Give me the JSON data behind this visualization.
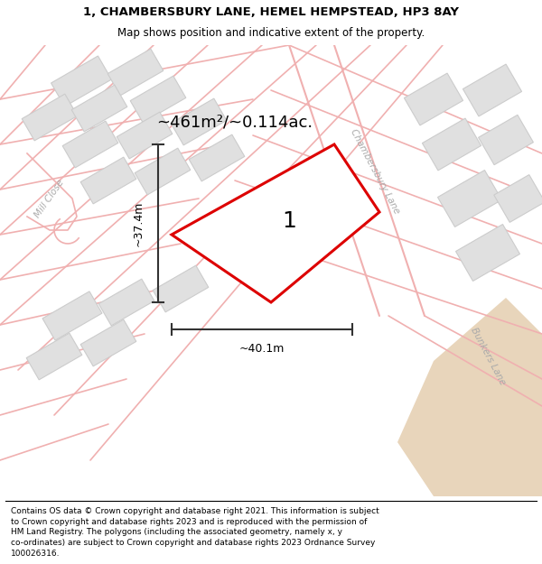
{
  "title_line1": "1, CHAMBERSBURY LANE, HEMEL HEMPSTEAD, HP3 8AY",
  "title_line2": "Map shows position and indicative extent of the property.",
  "area_text": "~461m²/~0.114ac.",
  "width_text": "~40.1m",
  "height_text": "~37.4m",
  "plot_number": "1",
  "footer_lines": [
    "Contains OS data © Crown copyright and database right 2021. This information is subject",
    "to Crown copyright and database rights 2023 and is reproduced with the permission of",
    "HM Land Registry. The polygons (including the associated geometry, namely x, y",
    "co-ordinates) are subject to Crown copyright and database rights 2023 Ordnance Survey",
    "100026316."
  ],
  "map_bg_color": "#ffffff",
  "plot_fill_color": "#ffffff",
  "plot_edge_color": "#dd0000",
  "road_line_color": "#f0b0b0",
  "building_fill_color": "#e0e0e0",
  "building_edge_color": "#cccccc",
  "tan_color": "#e8d5bb",
  "street_label_color": "#aaaaaa",
  "background_color": "#ffffff",
  "arrow_color": "#333333",
  "title_fontsize": 9.5,
  "subtitle_fontsize": 8.5,
  "area_fontsize": 13,
  "measure_fontsize": 9,
  "street_fontsize": 7.5,
  "plot_number_fontsize": 18,
  "footer_fontsize": 6.5
}
